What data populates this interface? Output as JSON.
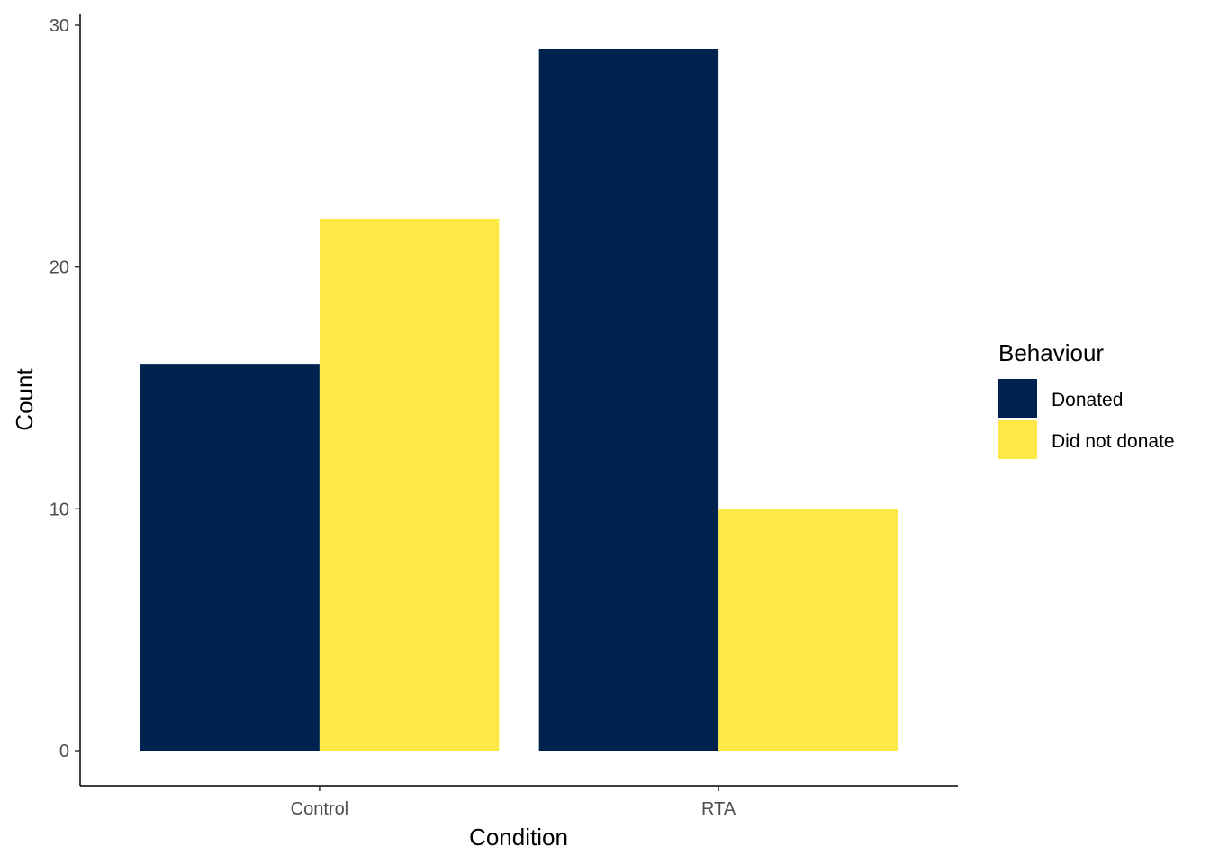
{
  "chart_data": {
    "type": "bar",
    "title": "",
    "xlabel": "Condition",
    "ylabel": "Count",
    "categories": [
      "Control",
      "RTA"
    ],
    "series": [
      {
        "name": "Donated",
        "values": [
          16,
          29
        ],
        "color": "#00224E"
      },
      {
        "name": "Did not donate",
        "values": [
          22,
          10
        ],
        "color": "#FEE845"
      }
    ],
    "ylim": [
      0,
      30
    ],
    "yticks": [
      0,
      10,
      20,
      30
    ],
    "ytick_labels": [
      "0",
      "10",
      "20",
      "30"
    ],
    "grid": false,
    "legend": {
      "title": "Behaviour",
      "position": "right"
    }
  }
}
